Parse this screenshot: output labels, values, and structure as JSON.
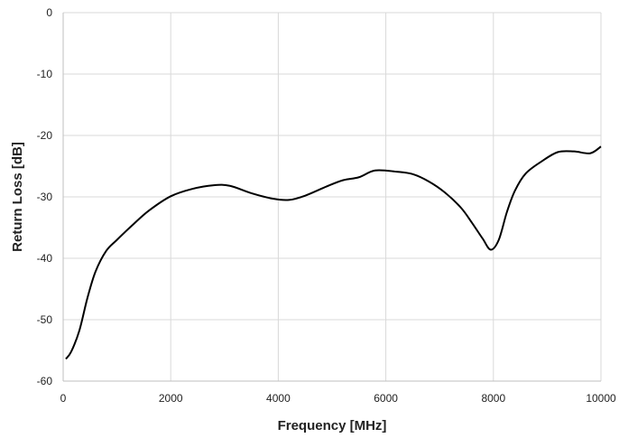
{
  "chart_data": {
    "type": "line",
    "title": "",
    "xlabel": "Frequency [MHz]",
    "ylabel": "Return Loss [dB]",
    "xlim": [
      0,
      10000
    ],
    "ylim": [
      -60,
      0
    ],
    "xticks": [
      0,
      2000,
      4000,
      6000,
      8000,
      10000
    ],
    "yticks": [
      0,
      -10,
      -20,
      -30,
      -40,
      -50,
      -60
    ],
    "grid": true,
    "legend": "none",
    "series": [
      {
        "color": "#000000",
        "x": [
          50,
          150,
          300,
          450,
          600,
          800,
          1000,
          1300,
          1600,
          2000,
          2400,
          2800,
          3100,
          3500,
          3900,
          4200,
          4500,
          4900,
          5200,
          5500,
          5800,
          6200,
          6500,
          6800,
          7100,
          7400,
          7600,
          7800,
          7950,
          8100,
          8250,
          8400,
          8600,
          8900,
          9200,
          9500,
          9800,
          10000
        ],
        "y": [
          -56.4,
          -55.2,
          -51.8,
          -46.5,
          -42.2,
          -38.8,
          -37.0,
          -34.5,
          -32.2,
          -29.9,
          -28.7,
          -28.1,
          -28.2,
          -29.4,
          -30.3,
          -30.5,
          -29.8,
          -28.3,
          -27.3,
          -26.8,
          -25.7,
          -25.9,
          -26.3,
          -27.5,
          -29.3,
          -31.8,
          -34.2,
          -36.8,
          -38.6,
          -37.0,
          -32.5,
          -29.0,
          -26.2,
          -24.2,
          -22.7,
          -22.6,
          -22.9,
          -21.8
        ]
      }
    ]
  }
}
